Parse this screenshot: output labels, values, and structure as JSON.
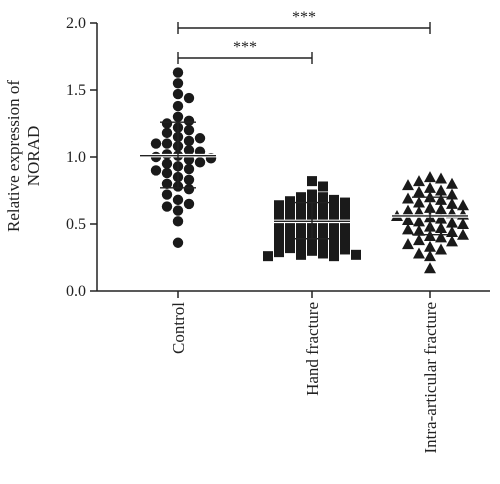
{
  "chart_data": {
    "type": "scatter",
    "title": "",
    "xlabel": "",
    "ylabel_lines": [
      "Relative expression of",
      "NORAD"
    ],
    "ylim": [
      0,
      2.0
    ],
    "yticks": [
      "0.0",
      "0.5",
      "1.0",
      "1.5",
      "2.0"
    ],
    "categories": [
      "Control",
      "Hand fracture",
      "Intra-articular fracture"
    ],
    "markers": [
      "circle",
      "square",
      "triangle"
    ],
    "colors": {
      "marker": "#1a1a1a",
      "axis": "#222222"
    },
    "summary": [
      {
        "mean": 1.01,
        "sd_low": 0.77,
        "sd_high": 1.26
      },
      {
        "mean": 0.52,
        "sd_low": 0.39,
        "sd_high": 0.66
      },
      {
        "mean": 0.56,
        "sd_low": 0.42,
        "sd_high": 0.7
      }
    ],
    "series": [
      {
        "values": [
          1.63,
          1.55,
          1.47,
          1.44,
          1.38,
          1.3,
          1.27,
          1.25,
          1.22,
          1.2,
          1.18,
          1.15,
          1.14,
          1.12,
          1.1,
          1.1,
          1.08,
          1.05,
          1.04,
          1.02,
          1.01,
          1.0,
          0.99,
          0.98,
          0.96,
          0.95,
          0.93,
          0.91,
          0.9,
          0.88,
          0.85,
          0.83,
          0.8,
          0.78,
          0.76,
          0.72,
          0.68,
          0.65,
          0.63,
          0.6,
          0.52,
          0.36
        ]
      },
      {
        "values": [
          0.82,
          0.78,
          0.72,
          0.7,
          0.7,
          0.68,
          0.67,
          0.66,
          0.65,
          0.64,
          0.63,
          0.62,
          0.61,
          0.6,
          0.59,
          0.58,
          0.57,
          0.56,
          0.55,
          0.54,
          0.53,
          0.52,
          0.51,
          0.5,
          0.49,
          0.48,
          0.47,
          0.46,
          0.45,
          0.44,
          0.43,
          0.42,
          0.41,
          0.4,
          0.39,
          0.38,
          0.37,
          0.36,
          0.35,
          0.34,
          0.33,
          0.32,
          0.31,
          0.3,
          0.29,
          0.28,
          0.27,
          0.27,
          0.26,
          0.26
        ]
      },
      {
        "values": [
          0.85,
          0.84,
          0.82,
          0.8,
          0.79,
          0.77,
          0.75,
          0.74,
          0.72,
          0.7,
          0.69,
          0.68,
          0.66,
          0.65,
          0.64,
          0.62,
          0.61,
          0.6,
          0.59,
          0.58,
          0.57,
          0.56,
          0.55,
          0.54,
          0.53,
          0.52,
          0.51,
          0.5,
          0.48,
          0.47,
          0.46,
          0.45,
          0.44,
          0.42,
          0.41,
          0.4,
          0.38,
          0.37,
          0.35,
          0.33,
          0.31,
          0.28,
          0.26,
          0.17
        ]
      }
    ],
    "significance": [
      {
        "from": 0,
        "to": 1,
        "label": "***"
      },
      {
        "from": 0,
        "to": 2,
        "label": "***"
      }
    ]
  }
}
